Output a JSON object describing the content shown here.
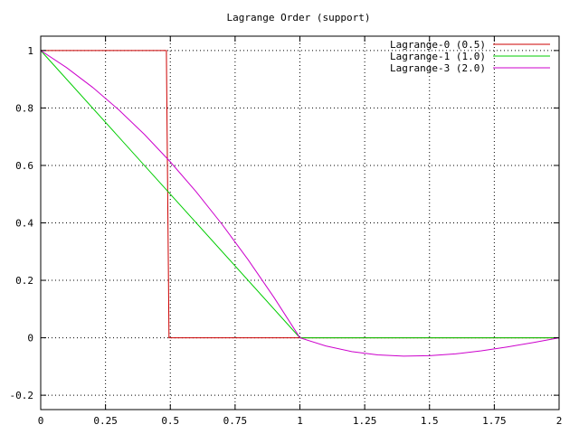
{
  "chart_data": {
    "type": "line",
    "title": "Lagrange Order (support)",
    "xlabel": "",
    "ylabel": "",
    "xlim": [
      0,
      2
    ],
    "ylim": [
      -0.25,
      1.05
    ],
    "x_ticks": [
      0,
      0.25,
      0.5,
      0.75,
      1,
      1.25,
      1.5,
      1.75,
      2
    ],
    "x_tick_labels": [
      "0",
      "0.25",
      "0.5",
      "0.75",
      "1",
      "1.25",
      "1.5",
      "1.75",
      "2"
    ],
    "y_ticks": [
      -0.2,
      0,
      0.2,
      0.4,
      0.6,
      0.8,
      1
    ],
    "y_tick_labels": [
      "-0.2",
      "0",
      "0.2",
      "0.4",
      "0.6",
      "0.8",
      "1"
    ],
    "grid": true,
    "legend_position": "top-right",
    "series": [
      {
        "name": "Lagrange-0 (0.5)",
        "color": "#cc0000",
        "x": [
          0,
          0.485,
          0.485,
          0.495,
          0.495,
          2
        ],
        "y": [
          1,
          1,
          0.985,
          -0.0,
          0,
          0
        ]
      },
      {
        "name": "Lagrange-1 (1.0)",
        "color": "#00cc00",
        "x": [
          0,
          1,
          2
        ],
        "y": [
          1,
          0,
          0
        ]
      },
      {
        "name": "Lagrange-3 (2.0)",
        "color": "#cc00cc",
        "x": [
          0,
          0.1,
          0.2,
          0.3,
          0.4,
          0.5,
          0.6,
          0.7,
          0.8,
          0.9,
          1.0,
          1.1,
          1.2,
          1.3,
          1.4,
          1.5,
          1.6,
          1.7,
          1.8,
          1.9,
          2.0
        ],
        "y": [
          1,
          0.9405,
          0.872,
          0.7945,
          0.708,
          0.6125,
          0.508,
          0.3945,
          0.272,
          0.1405,
          0,
          -0.0285,
          -0.048,
          -0.0595,
          -0.064,
          -0.0625,
          -0.056,
          -0.0455,
          -0.032,
          -0.0165,
          0
        ]
      }
    ]
  }
}
